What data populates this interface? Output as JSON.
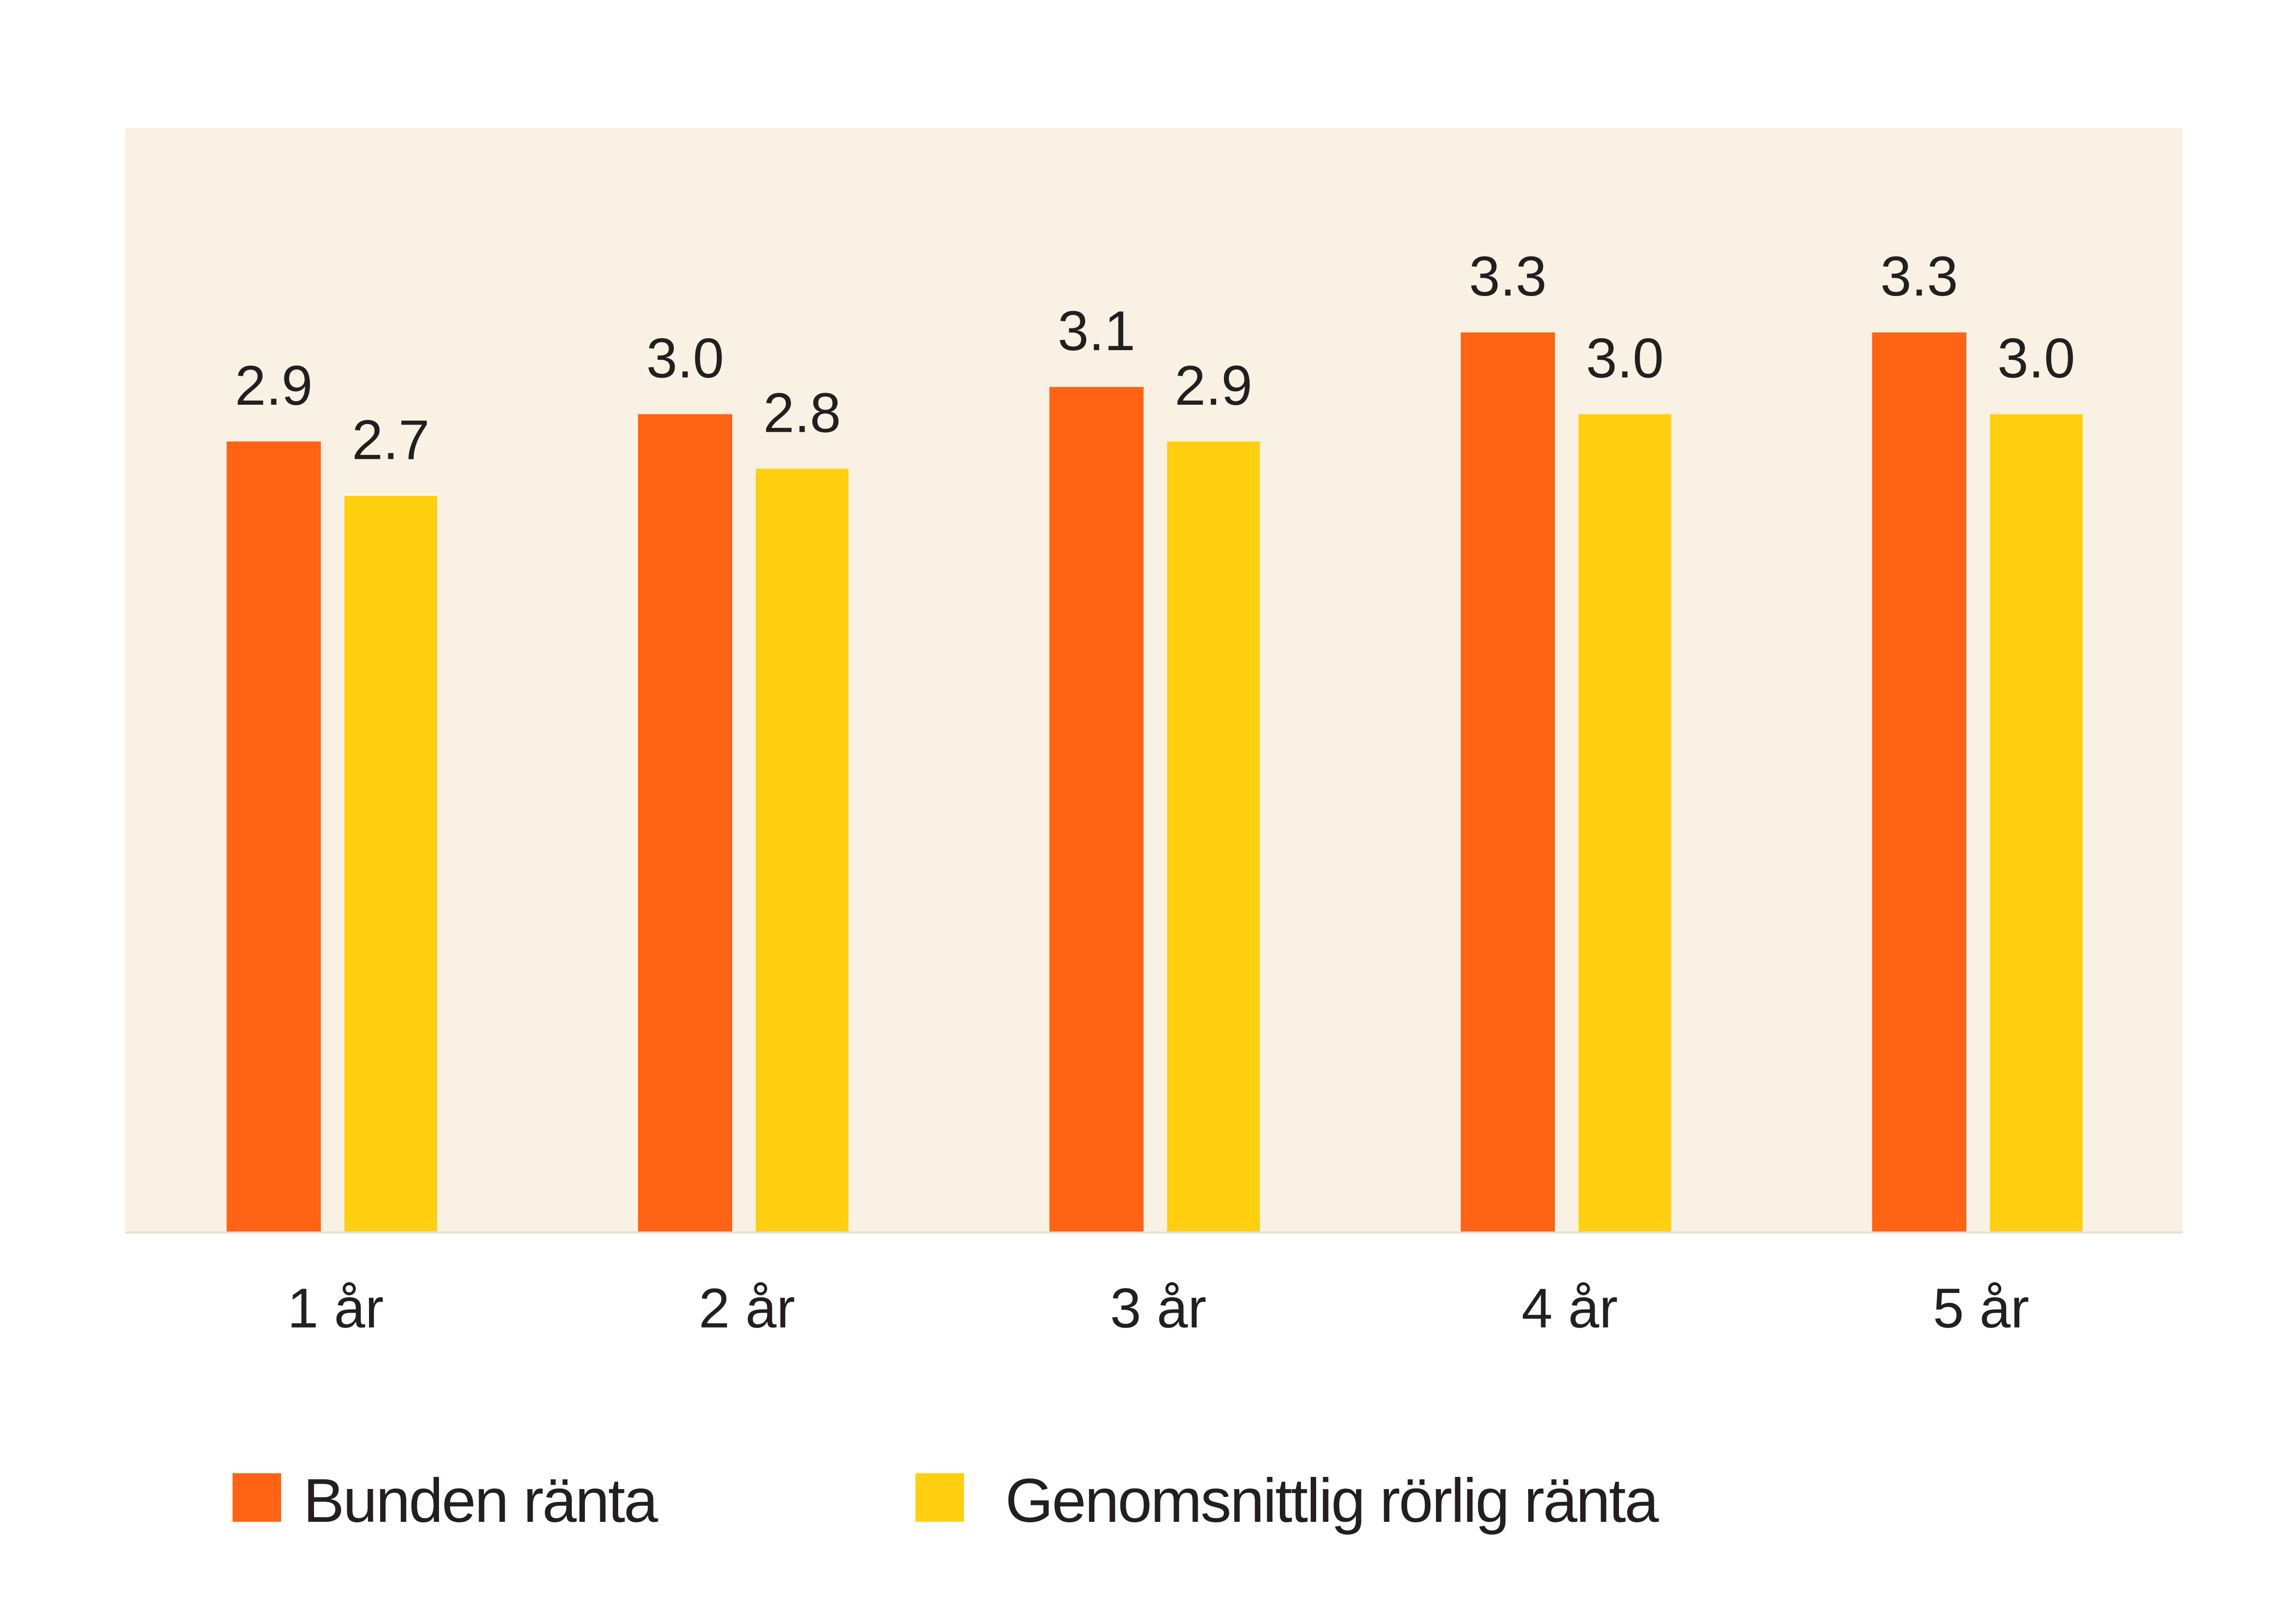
{
  "chart_data": {
    "type": "bar",
    "title": "",
    "xlabel": "",
    "ylabel": "",
    "categories": [
      "1 år",
      "2 år",
      "3 år",
      "4 år",
      "5 år"
    ],
    "ylim": [
      0,
      4.05
    ],
    "grid": false,
    "legend_position": "bottom",
    "data_labels": true,
    "series": [
      {
        "name": "Bunden ränta",
        "color": "#FF6313",
        "values": [
          2.9,
          3.0,
          3.1,
          3.3,
          3.3
        ]
      },
      {
        "name": "Genomsnittlig rörlig ränta",
        "color": "#FFCF10",
        "values": [
          2.7,
          2.8,
          2.9,
          3.0,
          3.0
        ]
      }
    ],
    "colors": {
      "plot_background": "#FAF1E5",
      "text": "#231F20",
      "baseline": "#E6E0D8"
    }
  }
}
